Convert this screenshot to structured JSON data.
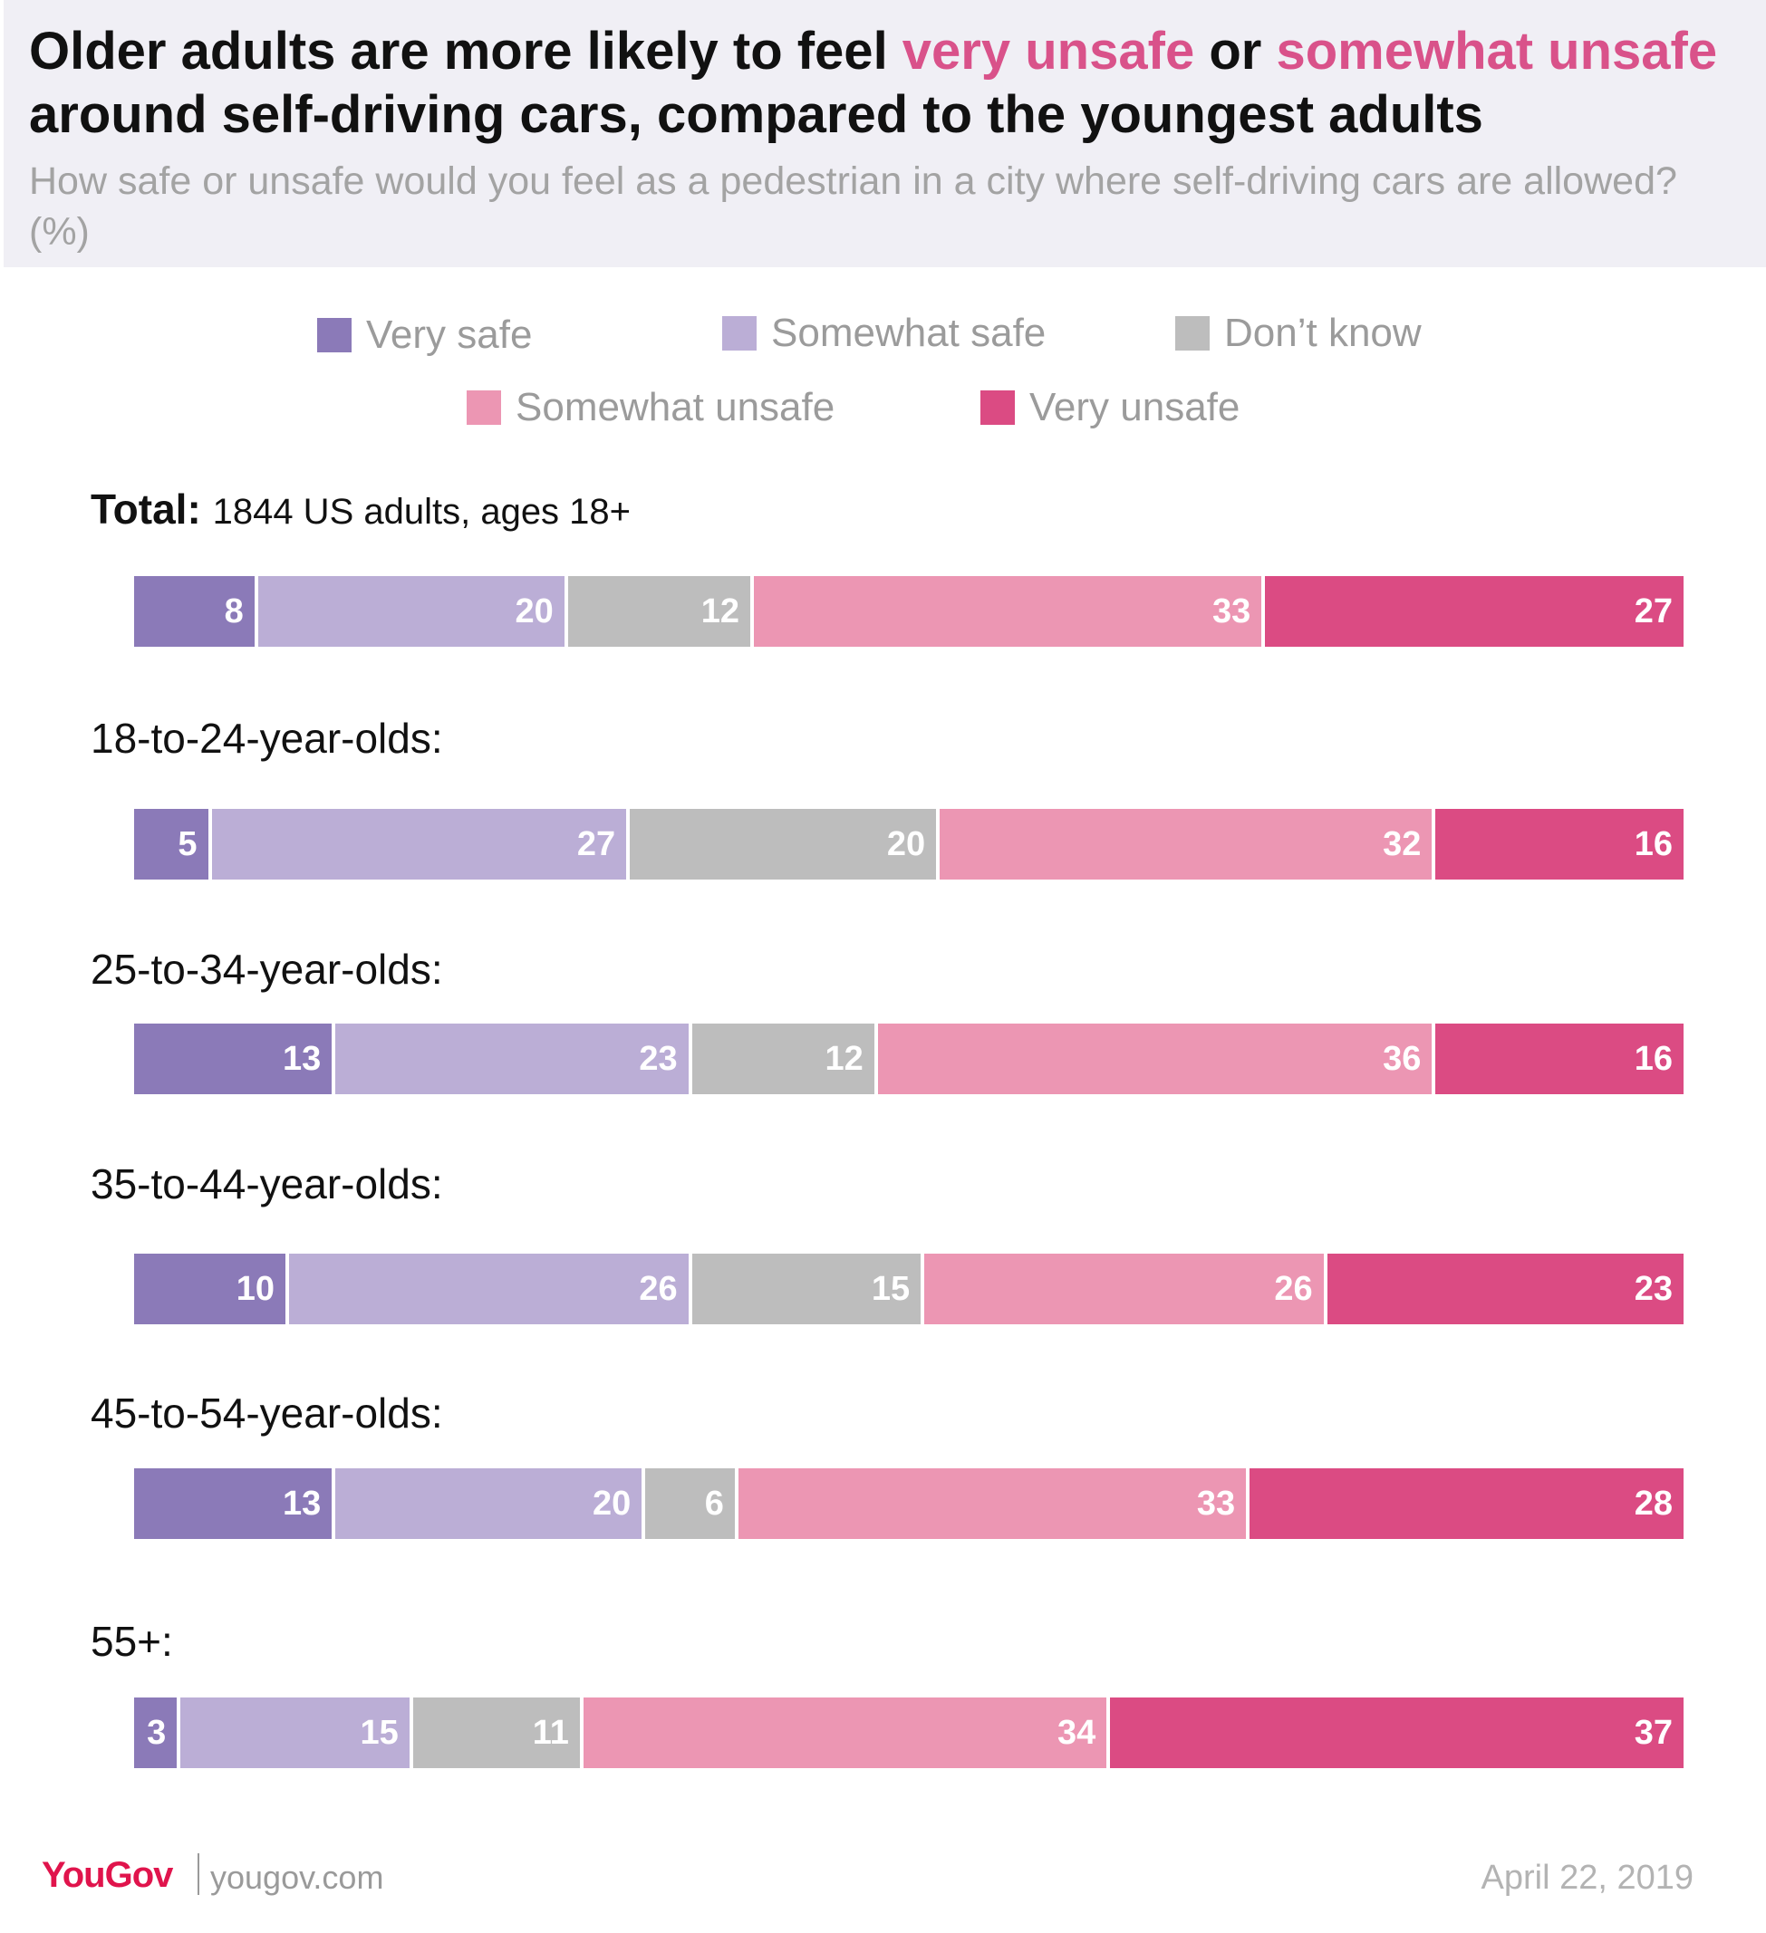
{
  "header": {
    "title_part1": "Older adults are more likely to feel ",
    "title_hl1": "very unsafe",
    "title_part2": " or ",
    "title_hl2": "somewhat unsafe",
    "title_part3": " around self-driving cars, compared to the youngest adults",
    "subtitle": "How safe or unsafe would you feel as a pedestrian in a city where self-driving cars are allowed? (%)",
    "highlight_color": "#d9528a"
  },
  "colors": {
    "Very safe": "#8b7ab8",
    "Somewhat safe": "#bbaed6",
    "Don't know": "#bdbdbd",
    "Somewhat unsafe": "#ec96b3",
    "Very unsafe": "#db4b83"
  },
  "legend": {
    "very_safe": "Very safe",
    "somewhat_safe": "Somewhat safe",
    "dont_know": "Don’t know",
    "somewhat_unsafe": "Somewhat unsafe",
    "very_unsafe": "Very unsafe"
  },
  "groups": {
    "total_label": "Total:",
    "total_sub": "1844 US adults, ages 18+",
    "g18_24": "18-to-24-year-olds:",
    "g25_34": "25-to-34-year-olds:",
    "g35_44": "35-to-44-year-olds:",
    "g45_54": "45-to-54-year-olds:",
    "g55": "55+:"
  },
  "chart_data": {
    "type": "bar",
    "orientation": "horizontal",
    "stacked": true,
    "title": "Older adults are more likely to feel very unsafe or somewhat unsafe around self-driving cars, compared to the youngest adults",
    "subtitle": "How safe or unsafe would you feel as a pedestrian in a city where self-driving cars are allowed? (%)",
    "categories": [
      "Total",
      "18-to-24-year-olds",
      "25-to-34-year-olds",
      "35-to-44-year-olds",
      "45-to-54-year-olds",
      "55+"
    ],
    "series": [
      {
        "name": "Very safe",
        "values": [
          8,
          5,
          13,
          10,
          13,
          3
        ]
      },
      {
        "name": "Somewhat safe",
        "values": [
          20,
          27,
          23,
          26,
          20,
          15
        ]
      },
      {
        "name": "Don't know",
        "values": [
          12,
          20,
          12,
          15,
          6,
          11
        ]
      },
      {
        "name": "Somewhat unsafe",
        "values": [
          33,
          32,
          36,
          26,
          33,
          34
        ]
      },
      {
        "name": "Very unsafe",
        "values": [
          27,
          16,
          16,
          23,
          28,
          37
        ]
      }
    ],
    "xlabel": "",
    "ylabel": "",
    "xlim": [
      0,
      100
    ],
    "legend_position": "top"
  },
  "footer": {
    "brand_you": "You",
    "brand_gov": "Gov",
    "url": "yougov.com",
    "date": "April 22, 2019"
  }
}
